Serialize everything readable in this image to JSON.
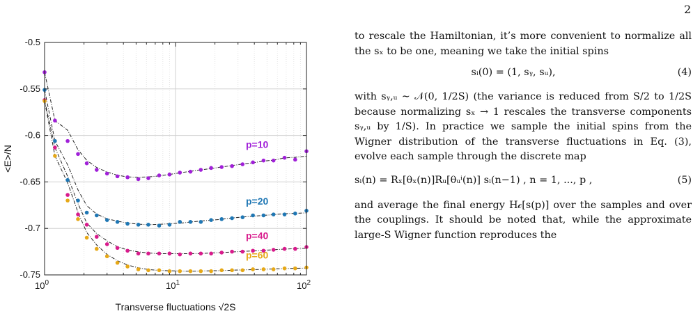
{
  "page_number": "2",
  "chart_data": {
    "type": "scatter",
    "title": "",
    "xlabel": "Transverse fluctuations √2S",
    "ylabel": "<E>/N",
    "x_scale": "log",
    "xlim": [
      1,
      100
    ],
    "ylim": [
      -0.75,
      -0.5
    ],
    "x_ticks": [
      "10^0",
      "10^1",
      "10^2"
    ],
    "y_ticks": [
      "-0.5",
      "-0.55",
      "-0.6",
      "-0.65",
      "-0.7",
      "-0.75"
    ],
    "grid": true,
    "fit_line_style": "black dash-dot",
    "series": [
      {
        "name": "p=10",
        "color": "#a020d8",
        "x": [
          1.0,
          1.2,
          1.5,
          1.8,
          2.1,
          2.5,
          3.0,
          3.6,
          4.3,
          5.2,
          6.2,
          7.5,
          9.0,
          10.8,
          13,
          15.6,
          18.7,
          22.5,
          27,
          32.5,
          39,
          47,
          56,
          68,
          82,
          100
        ],
        "y": [
          -0.532,
          -0.584,
          -0.606,
          -0.62,
          -0.63,
          -0.637,
          -0.641,
          -0.644,
          -0.645,
          -0.647,
          -0.646,
          -0.643,
          -0.642,
          -0.64,
          -0.639,
          -0.637,
          -0.635,
          -0.634,
          -0.633,
          -0.631,
          -0.629,
          -0.627,
          -0.627,
          -0.624,
          -0.626,
          -0.617
        ]
      },
      {
        "name": "p=20",
        "color": "#1f77b4",
        "x": [
          1.0,
          1.2,
          1.5,
          1.8,
          2.1,
          2.5,
          3.0,
          3.6,
          4.3,
          5.2,
          6.2,
          7.5,
          9.0,
          10.8,
          13,
          15.6,
          18.7,
          22.5,
          27,
          32.5,
          39,
          47,
          56,
          68,
          82,
          100
        ],
        "y": [
          -0.551,
          -0.606,
          -0.648,
          -0.67,
          -0.683,
          -0.686,
          -0.691,
          -0.693,
          -0.695,
          -0.696,
          -0.696,
          -0.697,
          -0.696,
          -0.693,
          -0.693,
          -0.693,
          -0.691,
          -0.69,
          -0.689,
          -0.688,
          -0.686,
          -0.686,
          -0.685,
          -0.685,
          -0.684,
          -0.681
        ]
      },
      {
        "name": "p=40",
        "color": "#d81b8c",
        "x": [
          1.0,
          1.2,
          1.5,
          1.8,
          2.1,
          2.5,
          3.0,
          3.6,
          4.3,
          5.2,
          6.2,
          7.5,
          9.0,
          10.8,
          13,
          15.6,
          18.7,
          22.5,
          27,
          32.5,
          39,
          47,
          56,
          68,
          82,
          100
        ],
        "y": [
          -0.562,
          -0.613,
          -0.664,
          -0.685,
          -0.696,
          -0.709,
          -0.717,
          -0.721,
          -0.724,
          -0.727,
          -0.727,
          -0.727,
          -0.727,
          -0.728,
          -0.727,
          -0.727,
          -0.727,
          -0.726,
          -0.725,
          -0.725,
          -0.724,
          -0.724,
          -0.723,
          -0.722,
          -0.722,
          -0.72
        ]
      },
      {
        "name": "p=60",
        "color": "#e6a817",
        "x": [
          1.0,
          1.2,
          1.5,
          1.8,
          2.1,
          2.5,
          3.0,
          3.6,
          4.3,
          5.2,
          6.2,
          7.5,
          9.0,
          10.8,
          13,
          15.6,
          18.7,
          22.5,
          27,
          32.5,
          39,
          47,
          56,
          68,
          82,
          100
        ],
        "y": [
          -0.563,
          -0.622,
          -0.67,
          -0.69,
          -0.71,
          -0.722,
          -0.73,
          -0.737,
          -0.741,
          -0.744,
          -0.745,
          -0.745,
          -0.746,
          -0.746,
          -0.746,
          -0.746,
          -0.746,
          -0.745,
          -0.745,
          -0.745,
          -0.744,
          -0.744,
          -0.744,
          -0.743,
          -0.743,
          -0.742
        ]
      }
    ]
  },
  "text": {
    "para1": "to rescale the Hamiltonian, it’s more convenient to normalize all the sₓ to be one, meaning we take the initial spins",
    "eq4": "sᵢ(0) = (1, sᵧ, sᵤ),",
    "eq4_number": "(4)",
    "para2": "with sᵧ,ᵤ ∼ 𝒩(0, 1/2S) (the variance is reduced from S/2 to 1/2S because normalizing sₓ → 1 rescales the transverse components sᵧ,ᵤ by 1/S). In practice we sample the initial spins from the Wigner distribution of the transverse fluctuations in Eq. (3), evolve each sample through the discrete map",
    "eq5": "sᵢ(n) = Rₓ[θₓ(n)]Rᵤ[θᵤⁱ(n)] sᵢ(n−1) ,    n = 1, ..., p ,",
    "eq5_number": "(5)",
    "para3": "and average the final energy H𝒸[s(p)] over the samples and over the couplings. It should be noted that, while the approximate large-S Wigner function reproduces the"
  }
}
